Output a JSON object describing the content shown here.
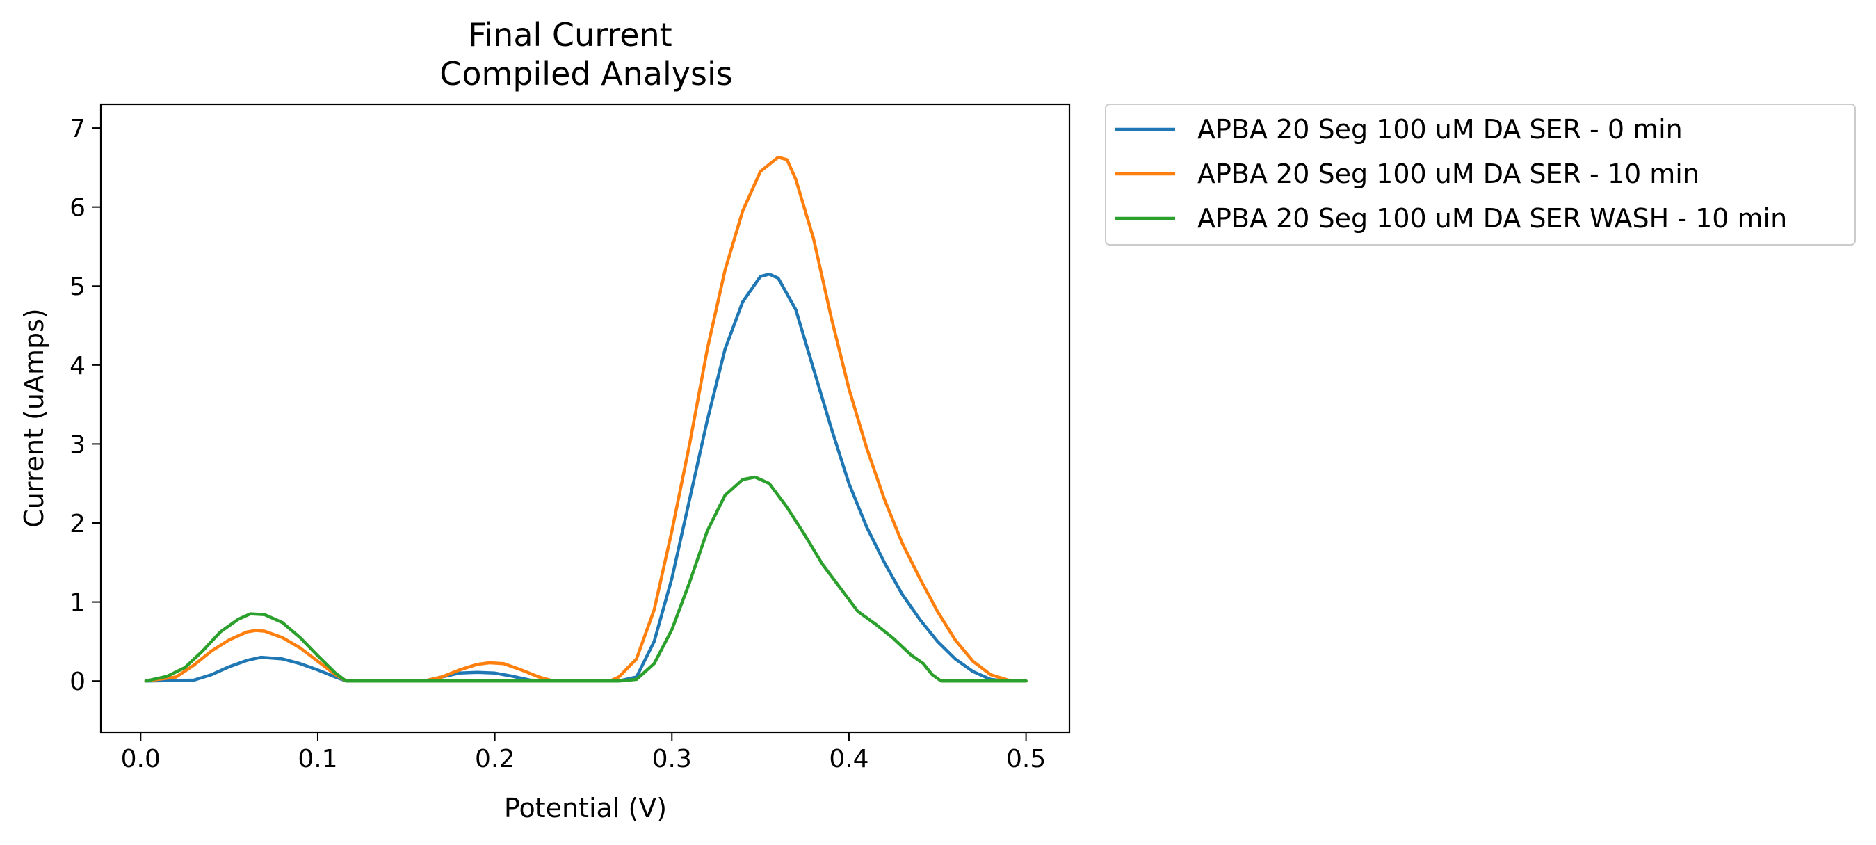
{
  "chart_data": {
    "type": "line",
    "title": [
      "Final Current",
      "Compiled Analysis"
    ],
    "xlabel": "Potential (V)",
    "ylabel": "Current (uAmps)",
    "xlim": [
      -0.0225,
      0.5245
    ],
    "ylim": [
      -0.65,
      7.3
    ],
    "xticks": [
      0.0,
      0.1,
      0.2,
      0.3,
      0.4,
      0.5
    ],
    "xtick_labels": [
      "0.0",
      "0.1",
      "0.2",
      "0.3",
      "0.4",
      "0.5"
    ],
    "yticks": [
      0,
      1,
      2,
      3,
      4,
      5,
      6,
      7
    ],
    "ytick_labels": [
      "0",
      "1",
      "2",
      "3",
      "4",
      "5",
      "6",
      "7"
    ],
    "grid": false,
    "legend_position": "outside-upper-right",
    "series": [
      {
        "name": "APBA 20 Seg 100 uM DA SER - 0 min",
        "color": "#1f77b4",
        "points": [
          [
            0.003,
            0
          ],
          [
            0.03,
            0.01
          ],
          [
            0.04,
            0.08
          ],
          [
            0.05,
            0.18
          ],
          [
            0.06,
            0.26
          ],
          [
            0.068,
            0.3
          ],
          [
            0.08,
            0.28
          ],
          [
            0.09,
            0.22
          ],
          [
            0.1,
            0.14
          ],
          [
            0.11,
            0.05
          ],
          [
            0.116,
            0
          ],
          [
            0.16,
            0
          ],
          [
            0.17,
            0.05
          ],
          [
            0.18,
            0.1
          ],
          [
            0.19,
            0.11
          ],
          [
            0.2,
            0.1
          ],
          [
            0.21,
            0.06
          ],
          [
            0.22,
            0.01
          ],
          [
            0.23,
            0
          ],
          [
            0.27,
            0
          ],
          [
            0.28,
            0.05
          ],
          [
            0.29,
            0.5
          ],
          [
            0.3,
            1.3
          ],
          [
            0.31,
            2.3
          ],
          [
            0.32,
            3.3
          ],
          [
            0.33,
            4.2
          ],
          [
            0.34,
            4.8
          ],
          [
            0.35,
            5.12
          ],
          [
            0.355,
            5.15
          ],
          [
            0.36,
            5.1
          ],
          [
            0.37,
            4.7
          ],
          [
            0.38,
            3.95
          ],
          [
            0.39,
            3.2
          ],
          [
            0.4,
            2.5
          ],
          [
            0.41,
            1.95
          ],
          [
            0.42,
            1.5
          ],
          [
            0.43,
            1.1
          ],
          [
            0.44,
            0.78
          ],
          [
            0.45,
            0.5
          ],
          [
            0.46,
            0.28
          ],
          [
            0.47,
            0.12
          ],
          [
            0.48,
            0.02
          ],
          [
            0.488,
            0
          ],
          [
            0.5,
            0
          ]
        ]
      },
      {
        "name": "APBA 20 Seg 100 uM DA SER - 10 min",
        "color": "#ff7f0e",
        "points": [
          [
            0.003,
            0
          ],
          [
            0.02,
            0.05
          ],
          [
            0.03,
            0.2
          ],
          [
            0.04,
            0.38
          ],
          [
            0.05,
            0.52
          ],
          [
            0.06,
            0.62
          ],
          [
            0.065,
            0.64
          ],
          [
            0.07,
            0.63
          ],
          [
            0.08,
            0.55
          ],
          [
            0.09,
            0.42
          ],
          [
            0.1,
            0.25
          ],
          [
            0.11,
            0.08
          ],
          [
            0.116,
            0
          ],
          [
            0.16,
            0
          ],
          [
            0.17,
            0.05
          ],
          [
            0.18,
            0.14
          ],
          [
            0.19,
            0.21
          ],
          [
            0.197,
            0.23
          ],
          [
            0.205,
            0.22
          ],
          [
            0.215,
            0.14
          ],
          [
            0.225,
            0.05
          ],
          [
            0.233,
            0
          ],
          [
            0.265,
            0
          ],
          [
            0.27,
            0.05
          ],
          [
            0.28,
            0.28
          ],
          [
            0.29,
            0.9
          ],
          [
            0.3,
            1.9
          ],
          [
            0.31,
            3.0
          ],
          [
            0.32,
            4.2
          ],
          [
            0.33,
            5.2
          ],
          [
            0.34,
            5.95
          ],
          [
            0.35,
            6.45
          ],
          [
            0.36,
            6.63
          ],
          [
            0.365,
            6.6
          ],
          [
            0.37,
            6.35
          ],
          [
            0.38,
            5.6
          ],
          [
            0.39,
            4.6
          ],
          [
            0.4,
            3.7
          ],
          [
            0.41,
            2.95
          ],
          [
            0.42,
            2.3
          ],
          [
            0.43,
            1.75
          ],
          [
            0.44,
            1.3
          ],
          [
            0.45,
            0.88
          ],
          [
            0.46,
            0.52
          ],
          [
            0.47,
            0.25
          ],
          [
            0.48,
            0.08
          ],
          [
            0.49,
            0.01
          ],
          [
            0.5,
            0
          ]
        ]
      },
      {
        "name": "APBA 20 Seg 100 uM DA SER WASH - 10 min",
        "color": "#2ca02c",
        "points": [
          [
            0.003,
            0
          ],
          [
            0.015,
            0.06
          ],
          [
            0.025,
            0.17
          ],
          [
            0.035,
            0.38
          ],
          [
            0.045,
            0.62
          ],
          [
            0.055,
            0.78
          ],
          [
            0.062,
            0.85
          ],
          [
            0.07,
            0.84
          ],
          [
            0.08,
            0.74
          ],
          [
            0.09,
            0.55
          ],
          [
            0.1,
            0.32
          ],
          [
            0.11,
            0.1
          ],
          [
            0.116,
            0
          ],
          [
            0.27,
            0
          ],
          [
            0.28,
            0.02
          ],
          [
            0.29,
            0.22
          ],
          [
            0.3,
            0.65
          ],
          [
            0.31,
            1.25
          ],
          [
            0.32,
            1.9
          ],
          [
            0.33,
            2.35
          ],
          [
            0.34,
            2.55
          ],
          [
            0.347,
            2.58
          ],
          [
            0.355,
            2.5
          ],
          [
            0.365,
            2.2
          ],
          [
            0.375,
            1.85
          ],
          [
            0.385,
            1.48
          ],
          [
            0.395,
            1.18
          ],
          [
            0.405,
            0.88
          ],
          [
            0.415,
            0.72
          ],
          [
            0.425,
            0.54
          ],
          [
            0.435,
            0.33
          ],
          [
            0.442,
            0.22
          ],
          [
            0.447,
            0.08
          ],
          [
            0.452,
            0
          ],
          [
            0.5,
            0
          ]
        ]
      }
    ]
  }
}
